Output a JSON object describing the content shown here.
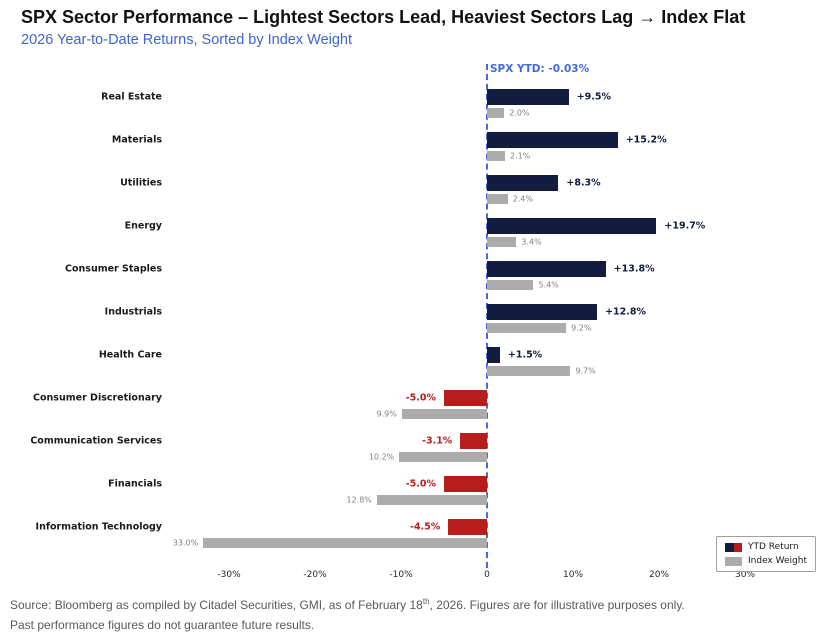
{
  "title": "SPX Sector Performance – Lightest Sectors Lead, Heaviest Sectors Lag → Index Flat",
  "subtitle": "2026 Year-to-Date Returns, Sorted by Index Weight",
  "colors": {
    "positive": "#111C3E",
    "negative": "#B71D1B",
    "weight_bar": "#ABABAB",
    "weight_label": "#7F7F7F",
    "reference_blue": "#4169E1",
    "subtitle_blue": "#3D64D0",
    "source_gray": "#595959"
  },
  "chart_data": {
    "type": "bar",
    "orientation": "horizontal",
    "title": "SPX Sector Performance – Lightest Sectors Lead, Heaviest Sectors Lag → Index Flat",
    "subtitle": "2026 Year-to-Date Returns, Sorted by Index Weight",
    "categories": [
      "Real Estate",
      "Materials",
      "Utilities",
      "Energy",
      "Consumer Staples",
      "Industrials",
      "Health Care",
      "Consumer Discretionary",
      "Communication Services",
      "Financials",
      "Information Technology"
    ],
    "series": [
      {
        "name": "YTD Return",
        "values": [
          9.5,
          15.2,
          8.3,
          19.7,
          13.8,
          12.8,
          1.5,
          -5.0,
          -3.1,
          -5.0,
          -4.5
        ],
        "labels": [
          "+9.5%",
          "+15.2%",
          "+8.3%",
          "+19.7%",
          "+13.8%",
          "+12.8%",
          "+1.5%",
          "-5.0%",
          "-3.1%",
          "-5.0%",
          "-4.5%"
        ]
      },
      {
        "name": "Index Weight",
        "values": [
          2.0,
          2.1,
          2.4,
          3.4,
          5.4,
          9.2,
          9.7,
          9.9,
          10.2,
          12.8,
          33.0
        ],
        "labels": [
          "2.0%",
          "2.1%",
          "2.4%",
          "3.4%",
          "5.4%",
          "9.2%",
          "9.7%",
          "9.9%",
          "10.2%",
          "12.8%",
          "33.0%"
        ],
        "note": "weight bars drawn in the direction of the return sign"
      }
    ],
    "x_axis": {
      "ticks": [
        -30,
        -20,
        -10,
        0,
        10,
        20,
        30
      ],
      "tick_labels": [
        "-30%",
        "-20%",
        "-10%",
        "0",
        "10%",
        "20%",
        "30%"
      ],
      "xlim": [
        -37,
        37
      ]
    },
    "reference_line": {
      "x": 0,
      "label": "SPX YTD: -0.03%",
      "style": "dashed"
    },
    "legend": {
      "position": "lower right",
      "entries": [
        "YTD Return",
        "Index Weight"
      ]
    },
    "grid": false
  },
  "source": {
    "line1_prefix": "Source: Bloomberg as compiled by Citadel Securities, GMI, as of February 18",
    "line1_sup": "th",
    "line1_suffix": ", 2026. Figures are for illustrative purposes only.",
    "line2": "Past performance figures do not guarantee future results."
  }
}
